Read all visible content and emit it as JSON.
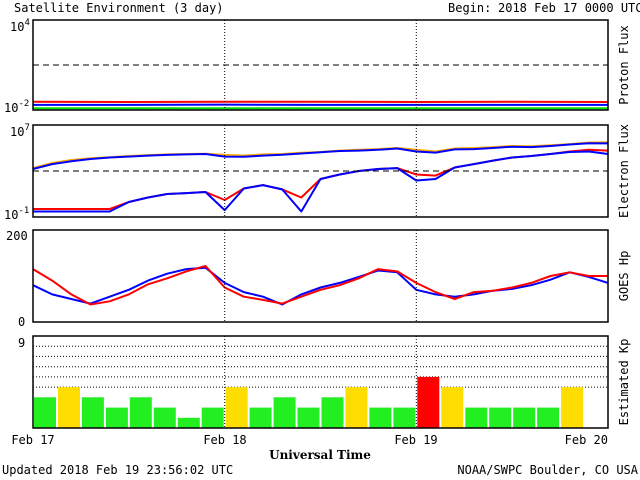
{
  "header": {
    "title": "Satellite Environment (3 day)",
    "begin_label": "Begin:",
    "begin_value": "2018 Feb 17 0000 UTC"
  },
  "footer": {
    "updated": "Updated 2018 Feb 19 23:56:02 UTC",
    "credit": "NOAA/SWPC Boulder, CO USA"
  },
  "chart_data": [
    {
      "type": "line",
      "title": "",
      "ylabel": "Proton Flux",
      "yscale": "log",
      "ylim": [
        0.01,
        10000
      ],
      "yticks": [
        {
          "base": "10",
          "exp": "4"
        },
        {
          "base": "10",
          "exp": "-2"
        }
      ],
      "threshold": 10,
      "x": [
        0,
        0.5,
        1,
        1.5,
        2,
        2.5,
        3
      ],
      "series": [
        {
          "color": "#ff0000",
          "values": [
            0.035,
            0.034,
            0.036,
            0.035,
            0.034,
            0.035,
            0.034
          ]
        },
        {
          "color": "#0000ff",
          "values": [
            0.022,
            0.022,
            0.023,
            0.022,
            0.022,
            0.022,
            0.022
          ]
        },
        {
          "color": "#00dd00",
          "values": [
            0.013,
            0.013,
            0.013,
            0.013,
            0.013,
            0.013,
            0.013
          ]
        }
      ]
    },
    {
      "type": "line",
      "title": "",
      "ylabel": "Electron Flux",
      "yscale": "log",
      "ylim": [
        0.1,
        10000000
      ],
      "yticks": [
        {
          "base": "10",
          "exp": "7"
        },
        {
          "base": "10",
          "exp": "-1"
        }
      ],
      "threshold": 1000,
      "x": [
        0,
        0.1,
        0.2,
        0.3,
        0.4,
        0.5,
        0.6,
        0.7,
        0.8,
        0.9,
        1.0,
        1.1,
        1.2,
        1.3,
        1.4,
        1.5,
        1.6,
        1.7,
        1.8,
        1.9,
        2.0,
        2.1,
        2.2,
        2.3,
        2.4,
        2.5,
        2.6,
        2.7,
        2.8,
        2.9,
        3.0
      ],
      "series": [
        {
          "color": "#ffaa00",
          "values": [
            1800,
            5000,
            9000,
            13000,
            16000,
            20000,
            24000,
            28000,
            30000,
            32000,
            25000,
            22000,
            28000,
            30000,
            38000,
            45000,
            60000,
            70000,
            80000,
            100000,
            70000,
            50000,
            90000,
            100000,
            120000,
            150000,
            140000,
            170000,
            220000,
            300000,
            320000
          ]
        },
        {
          "color": "#0000ff",
          "values": [
            1500,
            4000,
            7000,
            11000,
            15000,
            18000,
            22000,
            25000,
            28000,
            30000,
            18000,
            17000,
            22000,
            26000,
            33000,
            42000,
            55000,
            60000,
            70000,
            90000,
            50000,
            40000,
            75000,
            80000,
            100000,
            130000,
            120000,
            150000,
            200000,
            260000,
            250000
          ]
        },
        {
          "color": "#ff0000",
          "values": [
            0.5,
            0.5,
            0.5,
            0.5,
            0.5,
            2,
            5,
            10,
            12,
            15,
            3,
            30,
            60,
            25,
            5,
            200,
            500,
            1000,
            1500,
            1800,
            500,
            400,
            2000,
            4000,
            8000,
            15000,
            20000,
            30000,
            50000,
            70000,
            60000
          ]
        },
        {
          "color": "#0000ff",
          "values": [
            0.3,
            0.3,
            0.3,
            0.3,
            0.3,
            2,
            5,
            10,
            12,
            15,
            0.4,
            30,
            60,
            25,
            0.3,
            200,
            500,
            1000,
            1500,
            1800,
            150,
            200,
            2000,
            4000,
            8000,
            15000,
            20000,
            30000,
            45000,
            50000,
            30000
          ]
        }
      ]
    },
    {
      "type": "line",
      "title": "",
      "ylabel": "GOES Hp",
      "ylim": [
        0,
        200
      ],
      "yticks": [
        "200",
        "0"
      ],
      "x": [
        0,
        0.1,
        0.2,
        0.3,
        0.4,
        0.5,
        0.6,
        0.7,
        0.8,
        0.9,
        1.0,
        1.1,
        1.2,
        1.3,
        1.4,
        1.5,
        1.6,
        1.7,
        1.8,
        1.9,
        2.0,
        2.1,
        2.2,
        2.3,
        2.4,
        2.5,
        2.6,
        2.7,
        2.8,
        2.9,
        3.0
      ],
      "series": [
        {
          "color": "#0000ff",
          "values": [
            80,
            60,
            50,
            40,
            55,
            70,
            90,
            105,
            115,
            118,
            85,
            65,
            55,
            38,
            60,
            75,
            85,
            98,
            112,
            108,
            70,
            60,
            55,
            60,
            68,
            72,
            80,
            92,
            108,
            98,
            85
          ]
        },
        {
          "color": "#ff0000",
          "values": [
            115,
            90,
            60,
            38,
            45,
            60,
            82,
            95,
            110,
            122,
            75,
            55,
            48,
            40,
            55,
            70,
            80,
            95,
            115,
            110,
            85,
            65,
            50,
            65,
            68,
            75,
            85,
            100,
            108,
            100,
            100
          ]
        }
      ]
    },
    {
      "type": "bar",
      "title": "",
      "ylabel": "Estimated Kp",
      "ylim": [
        0,
        9
      ],
      "yticks": [
        "9"
      ],
      "xlabel": "Universal Time",
      "xticks": [
        "Feb 17",
        "Feb 18",
        "Feb 19",
        "Feb 20"
      ],
      "values": [
        3,
        4,
        3,
        2,
        3,
        2,
        1,
        2,
        4,
        2,
        3,
        2,
        3,
        4,
        2,
        2,
        5,
        4,
        2,
        2,
        2,
        2,
        4,
        0
      ],
      "colors": [
        "#22ee22",
        "#ffdd00",
        "#22ee22",
        "#22ee22",
        "#22ee22",
        "#22ee22",
        "#22ee22",
        "#22ee22",
        "#ffdd00",
        "#22ee22",
        "#22ee22",
        "#22ee22",
        "#22ee22",
        "#ffdd00",
        "#22ee22",
        "#22ee22",
        "#ff0000",
        "#ffdd00",
        "#22ee22",
        "#22ee22",
        "#22ee22",
        "#22ee22",
        "#ffdd00",
        "#22ee22"
      ]
    }
  ]
}
